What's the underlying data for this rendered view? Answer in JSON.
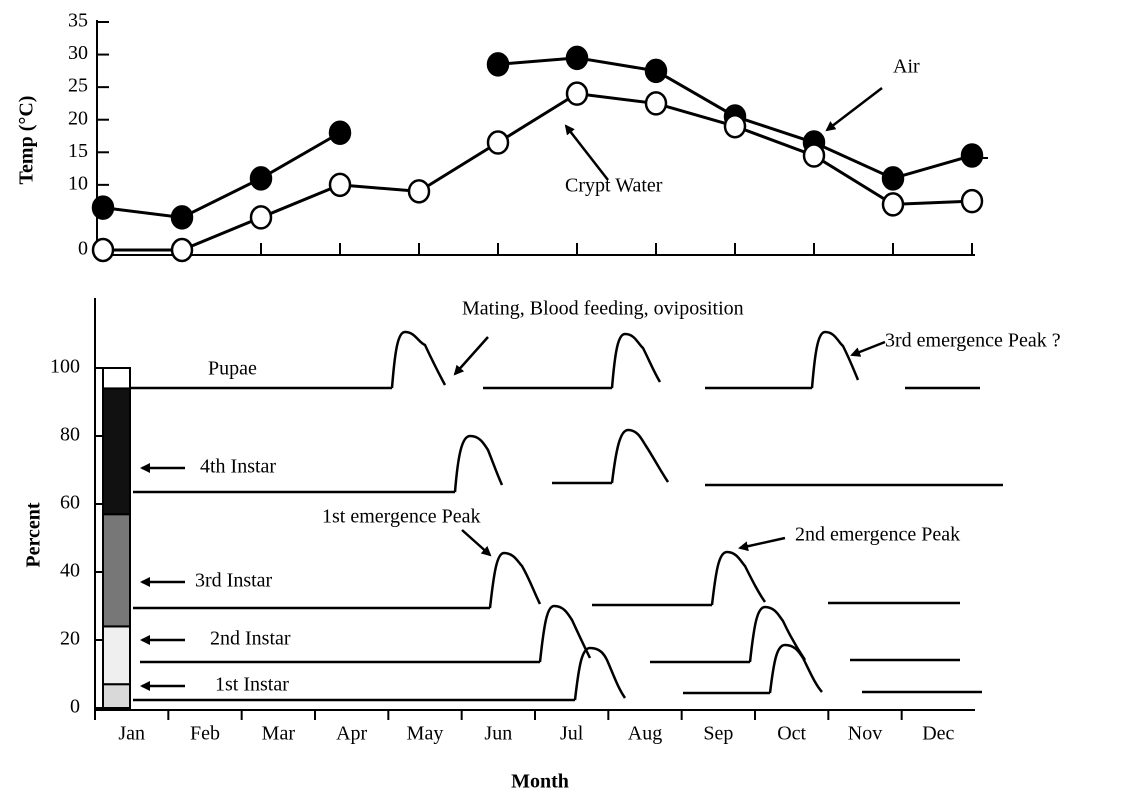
{
  "chart_data": [
    {
      "type": "line",
      "ylabel": "Temp (°C)",
      "ylim": [
        0,
        35
      ],
      "yticks": [
        0,
        10,
        15,
        20,
        25,
        30,
        35
      ],
      "series": [
        {
          "name": "Air",
          "color": "#000000",
          "marker": "filled",
          "values": [
            6.5,
            5,
            11,
            18,
            null,
            28.5,
            29.5,
            27.5,
            20.5,
            16.5,
            11,
            14.5
          ]
        },
        {
          "name": "Crypt Water",
          "color": "#000000",
          "marker": "open",
          "values": [
            0,
            0,
            5,
            10,
            9,
            16.5,
            24,
            22.5,
            19,
            14.5,
            7,
            7.5
          ]
        }
      ]
    },
    {
      "type": "stacked_bar",
      "xlabel": "Month",
      "ylabel": "Percent",
      "categories": [
        "Jan",
        "Feb",
        "Mar",
        "Apr",
        "May",
        "Jun",
        "Jul",
        "Aug",
        "Sep",
        "Oct",
        "Nov",
        "Dec"
      ],
      "ylim": [
        0,
        120
      ],
      "yticks": [
        0,
        20,
        40,
        60,
        80,
        100
      ],
      "series": [
        {
          "name": "1st Instar",
          "color": "#d9d9d9",
          "values": [
            7,
            null,
            null,
            null,
            null,
            null,
            null,
            null,
            null,
            null,
            null,
            null
          ]
        },
        {
          "name": "2nd Instar",
          "color": "#efefef",
          "values": [
            17,
            null,
            null,
            null,
            null,
            null,
            null,
            null,
            null,
            null,
            null,
            null
          ]
        },
        {
          "name": "3rd Instar",
          "color": "#777777",
          "values": [
            33,
            null,
            null,
            null,
            null,
            null,
            null,
            null,
            null,
            null,
            null,
            null
          ]
        },
        {
          "name": "4th Instar",
          "color": "#111111",
          "values": [
            37,
            null,
            null,
            null,
            null,
            null,
            null,
            null,
            null,
            null,
            null,
            null
          ]
        },
        {
          "name": "Pupae",
          "color": "#ffffff",
          "values": [
            6,
            null,
            null,
            null,
            null,
            null,
            null,
            null,
            null,
            null,
            null,
            null
          ]
        }
      ],
      "annotations": [
        "Mating, Blood feeding, oviposition",
        "1st emergence Peak",
        "2nd emergence Peak",
        "3rd emergence Peak ?"
      ]
    }
  ]
}
